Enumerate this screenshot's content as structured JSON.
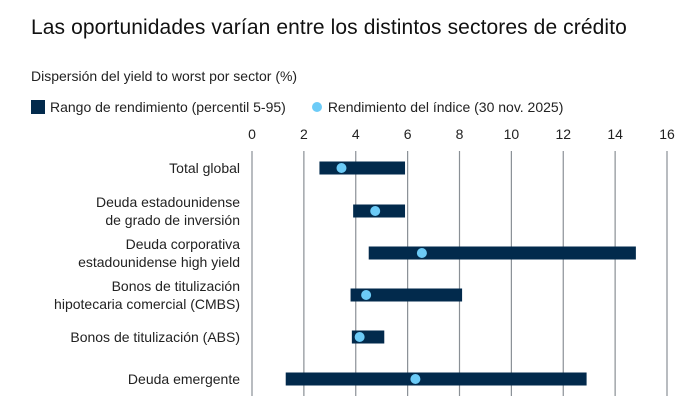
{
  "chart_data": {
    "type": "range-dot",
    "title": "Las oportunidades varían entre los distintos sectores de crédito",
    "subtitle": "Dispersión del yield to worst por sector (%)",
    "legend": [
      {
        "name": "Rango de rendimiento (percentil 5-95)",
        "marker": "bar",
        "color": "#022a4c"
      },
      {
        "name": "Rendimiento del índice (30 nov. 2025)",
        "marker": "dot",
        "color": "#6ccbf7"
      }
    ],
    "legend_position": "top-left",
    "xlim": [
      0,
      16
    ],
    "xticks": [
      "0",
      "2",
      "4",
      "6",
      "8",
      "10",
      "12",
      "14",
      "16"
    ],
    "xtick_values": [
      0,
      2,
      4,
      6,
      8,
      10,
      12,
      14,
      16
    ],
    "grid": true,
    "categories": [
      {
        "label_lines": [
          "Total global"
        ],
        "low": 2.6,
        "high": 5.9,
        "index": 3.45
      },
      {
        "label_lines": [
          "Deuda estadounidense",
          "de grado de inversión"
        ],
        "low": 3.9,
        "high": 5.9,
        "index": 4.75
      },
      {
        "label_lines": [
          "Deuda corporativa",
          "estadounidense high yield"
        ],
        "low": 4.5,
        "high": 14.8,
        "index": 6.55
      },
      {
        "label_lines": [
          "Bonos de titulización",
          "hipotecaria comercial (CMBS)"
        ],
        "low": 3.8,
        "high": 8.1,
        "index": 4.4
      },
      {
        "label_lines": [
          "Bonos de titulización (ABS)"
        ],
        "low": 3.85,
        "high": 5.1,
        "index": 4.15
      },
      {
        "label_lines": [
          "Deuda emergente"
        ],
        "low": 1.3,
        "high": 12.9,
        "index": 6.3
      }
    ]
  }
}
